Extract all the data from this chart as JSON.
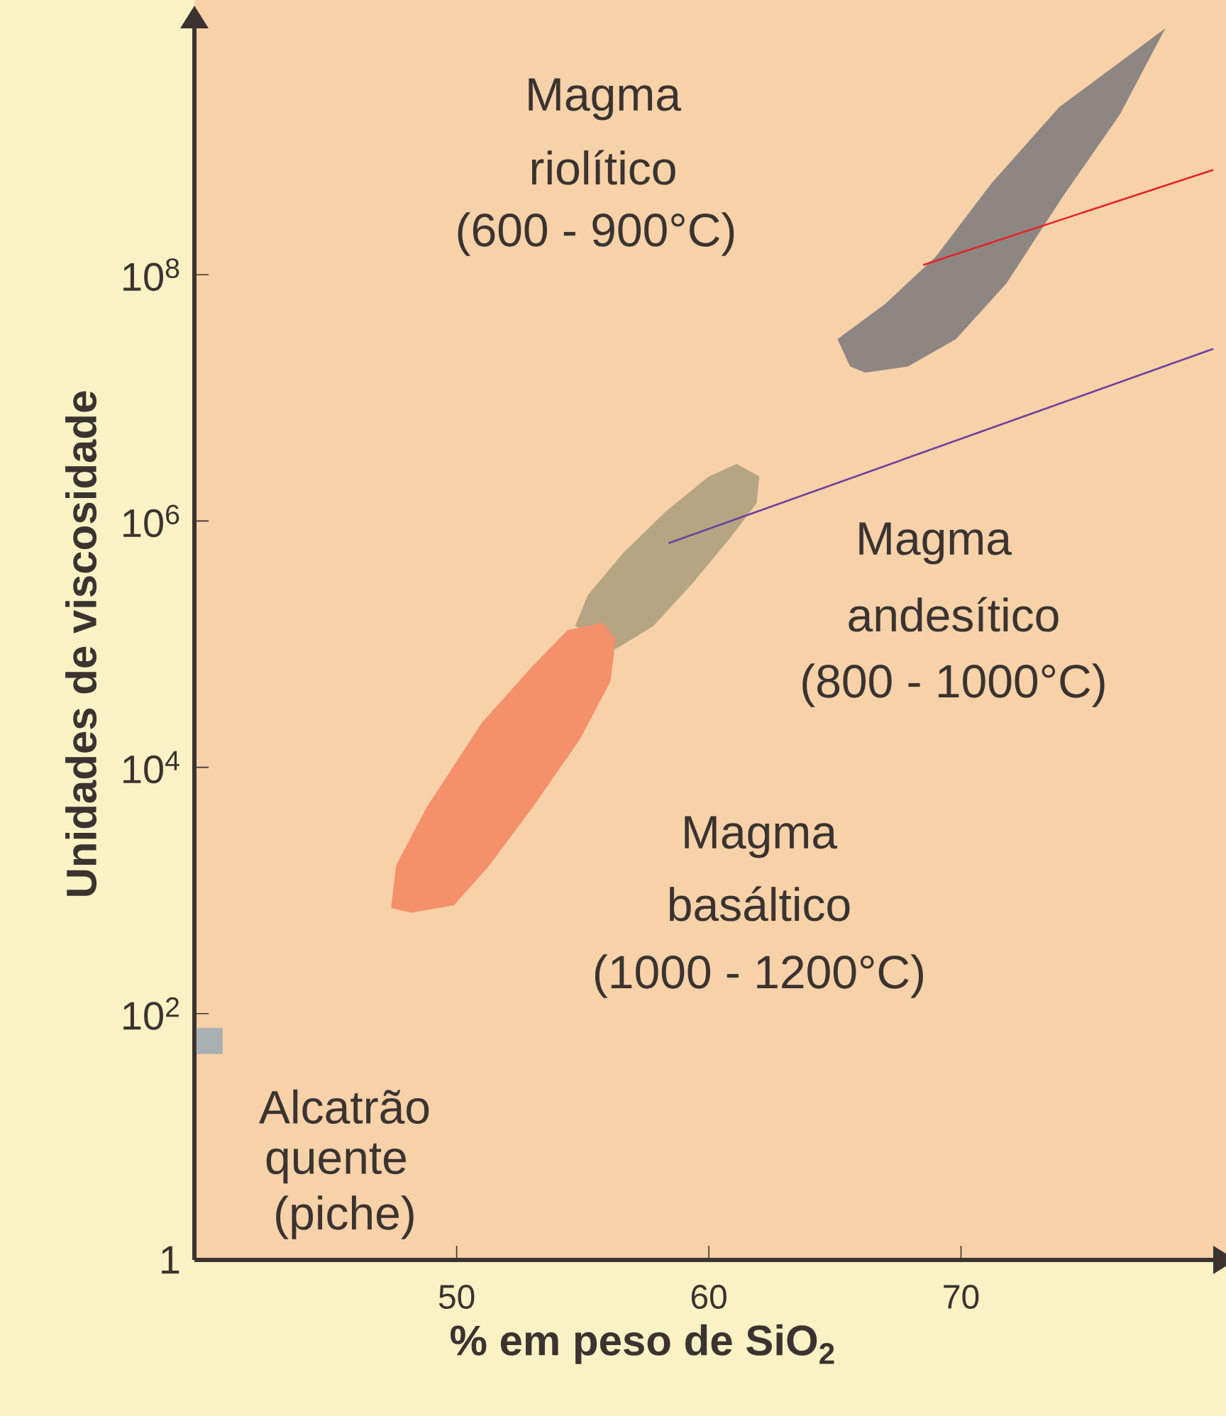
{
  "chart_data": {
    "type": "area",
    "xlabel": "% em peso de SiO$_{2}$",
    "ylabel": "Unidades de viscosidade",
    "log": "y",
    "xlim": [
      39.6,
      80
    ],
    "ylim": [
      1,
      10000000000.0
    ],
    "xticks": [
      50,
      60,
      70
    ],
    "yticks": [
      1,
      {
        "value": 100,
        "label": "10$^{2}$"
      },
      {
        "value": 10000,
        "label": "10$^{4}$"
      },
      {
        "value": 1000000,
        "label": "10$^{6}$"
      },
      {
        "value": 100000000,
        "label": "10$^{8}$"
      }
    ],
    "series": [
      {
        "color": "#8e8683",
        "x": [
          65.6,
          65.1,
          67.0,
          69.0,
          71.2,
          73.9,
          78.1,
          76.3,
          74.0,
          71.8,
          69.8,
          67.9,
          66.2
        ],
        "values": [
          18000000.0,
          30000000.0,
          58000000.0,
          140000000.0,
          550000000.0,
          2300000000.0,
          10000000000.0,
          2000000000.0,
          420000000.0,
          85000000.0,
          30000000.0,
          18000000.0,
          16000000.0
        ]
      },
      {
        "color": "#b5a583",
        "x": [
          54.7,
          55.2,
          56.6,
          58.3,
          60.0,
          61.1,
          62.0,
          61.9,
          60.8,
          59.4,
          57.8,
          56.3
        ],
        "values": [
          140000.0,
          250000.0,
          550000.0,
          1200000.0,
          2300000.0,
          2900000.0,
          2300000.0,
          1400000.0,
          710000.0,
          320000.0,
          140000.0,
          91000.0
        ]
      },
      {
        "color": "#f4906a",
        "x": [
          47.4,
          47.6,
          48.8,
          51.0,
          53.0,
          54.4,
          55.8,
          56.3,
          56.1,
          54.9,
          53.0,
          51.3,
          49.9,
          48.2
        ],
        "values": [
          720,
          1600,
          4700,
          23000,
          66000,
          130000,
          150000,
          110000,
          50000,
          17000,
          4700,
          1600,
          760,
          660
        ]
      },
      {
        "type": "scatter",
        "marker": "square",
        "color": "#a9b0b3",
        "x": [
          40.2
        ],
        "values": [
          60
        ]
      },
      {
        "type": "line",
        "color": "#e8202a",
        "x": [
          68.5,
          80
        ],
        "values": [
          120000000.0,
          710000000.0
        ]
      },
      {
        "type": "line",
        "color": "#6b3fa0",
        "x": [
          58.4,
          80
        ],
        "values": [
          660000.0,
          25000000.0
        ]
      }
    ],
    "annotations": [
      "Magma",
      "riolítico",
      "(600 - 900°C)",
      "Magma",
      "andesítico",
      "(800 - 1000°C)",
      "Magma",
      "basáltico",
      "(1000 - 1200°C)",
      "Alcatrão",
      "quente",
      "(piche)"
    ]
  }
}
